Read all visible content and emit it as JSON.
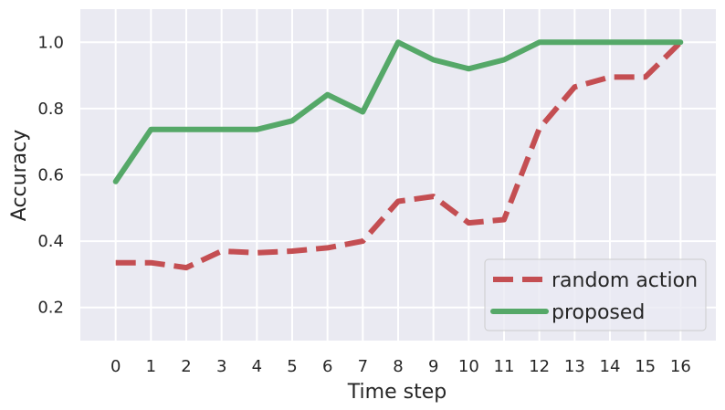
{
  "chart_data": {
    "type": "line",
    "xlabel": "Time step",
    "ylabel": "Accuracy",
    "x": [
      0,
      1,
      2,
      3,
      4,
      5,
      6,
      7,
      8,
      9,
      10,
      11,
      12,
      13,
      14,
      15,
      16
    ],
    "xlim": [
      -1,
      17
    ],
    "ylim": [
      0.1,
      1.1
    ],
    "yticks": [
      0.2,
      0.4,
      0.6,
      0.8,
      1.0
    ],
    "yticklabels": [
      "0.2",
      "0.4",
      "0.6",
      "0.8",
      "1.0"
    ],
    "grid": true,
    "legend": "lower-right",
    "series": [
      {
        "name": "random action",
        "color": "#c44e52",
        "style": "dashed",
        "values": [
          0.335,
          0.335,
          0.32,
          0.37,
          0.365,
          0.37,
          0.38,
          0.4,
          0.52,
          0.535,
          0.455,
          0.465,
          0.74,
          0.865,
          0.895,
          0.895,
          1.0
        ]
      },
      {
        "name": "proposed",
        "color": "#55a868",
        "style": "solid",
        "values": [
          0.58,
          0.737,
          0.737,
          0.737,
          0.737,
          0.763,
          0.842,
          0.79,
          1.0,
          0.947,
          0.92,
          0.947,
          1.0,
          1.0,
          1.0,
          1.0,
          1.0
        ]
      }
    ]
  }
}
